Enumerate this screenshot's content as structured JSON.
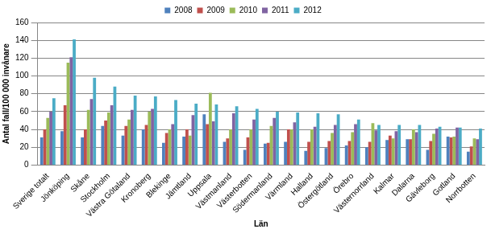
{
  "chart_data": {
    "type": "bar",
    "x_label": "Län",
    "y_label": "Antal fall/100 000 invånare",
    "categories": [
      "Sverige totalt",
      "Jönköping",
      "Skåne",
      "Stockholm",
      "Västra Götaland",
      "Kronoberg",
      "Blekinge",
      "Jämtland",
      "Uppsala",
      "Västmanland",
      "Västerbotten",
      "Södermanland",
      "Värmland",
      "Halland",
      "Östergötland",
      "Örebro",
      "Västernorrland",
      "Kalmar",
      "Dalarna",
      "Gävleborg",
      "Gotland",
      "Norrbotten"
    ],
    "series": [
      {
        "name": "2008",
        "color": "#4f81bd",
        "values": [
          31,
          38,
          31,
          44,
          33,
          40,
          25,
          32,
          57,
          26,
          17,
          24,
          26,
          16,
          19,
          22,
          20,
          28,
          29,
          17,
          32,
          15
        ]
      },
      {
        "name": "2009",
        "color": "#c0504d",
        "values": [
          40,
          67,
          40,
          50,
          44,
          45,
          36,
          40,
          46,
          30,
          31,
          25,
          40,
          26,
          27,
          27,
          26,
          33,
          29,
          27,
          31,
          21
        ]
      },
      {
        "name": "2010",
        "color": "#9bbb59",
        "values": [
          53,
          115,
          62,
          59,
          51,
          60,
          40,
          33,
          81,
          40,
          40,
          44,
          40,
          40,
          36,
          37,
          47,
          30,
          40,
          35,
          32,
          30
        ]
      },
      {
        "name": "2011",
        "color": "#8064a2",
        "values": [
          60,
          121,
          74,
          67,
          62,
          63,
          46,
          56,
          49,
          58,
          51,
          53,
          48,
          43,
          45,
          46,
          39,
          38,
          37,
          41,
          42,
          29
        ]
      },
      {
        "name": "2012",
        "color": "#4bacc6",
        "values": [
          75,
          141,
          98,
          88,
          78,
          77,
          73,
          69,
          68,
          66,
          63,
          60,
          59,
          58,
          57,
          51,
          45,
          45,
          45,
          43,
          42,
          41
        ]
      }
    ],
    "ylim": [
      0,
      160
    ],
    "yticks": [
      0,
      20,
      40,
      60,
      80,
      100,
      120,
      140,
      160
    ],
    "grid": true,
    "legend": "top"
  }
}
